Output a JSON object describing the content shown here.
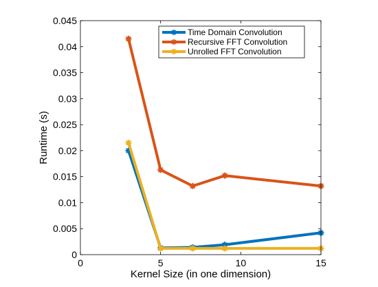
{
  "chart_data": {
    "type": "line",
    "title": "",
    "xlabel": "Kernel Size (in one dimension)",
    "ylabel": "Runtime (s)",
    "xlim": [
      0,
      15
    ],
    "ylim": [
      0,
      0.045
    ],
    "x_ticks": [
      "0",
      "5",
      "10",
      "15"
    ],
    "y_ticks": [
      "0",
      "0.005",
      "0.01",
      "0.015",
      "0.02",
      "0.025",
      "0.03",
      "0.035",
      "0.04",
      "0.045"
    ],
    "grid": false,
    "legend_position": "top-right",
    "x": [
      3,
      5,
      7,
      9,
      15
    ],
    "series": [
      {
        "name": "Time Domain Convolution",
        "color": "#0072bd",
        "marker": "asterisk",
        "values": [
          0.02,
          0.0013,
          0.0014,
          0.0019,
          0.0042
        ]
      },
      {
        "name": "Recursive FFT Convolution",
        "color": "#d95319",
        "marker": "asterisk",
        "values": [
          0.0415,
          0.0163,
          0.0132,
          0.0152,
          0.0132
        ]
      },
      {
        "name": "Unrolled FFT Convolution",
        "color": "#edb120",
        "marker": "asterisk",
        "values": [
          0.0215,
          0.0012,
          0.0012,
          0.0012,
          0.0012
        ]
      }
    ]
  }
}
